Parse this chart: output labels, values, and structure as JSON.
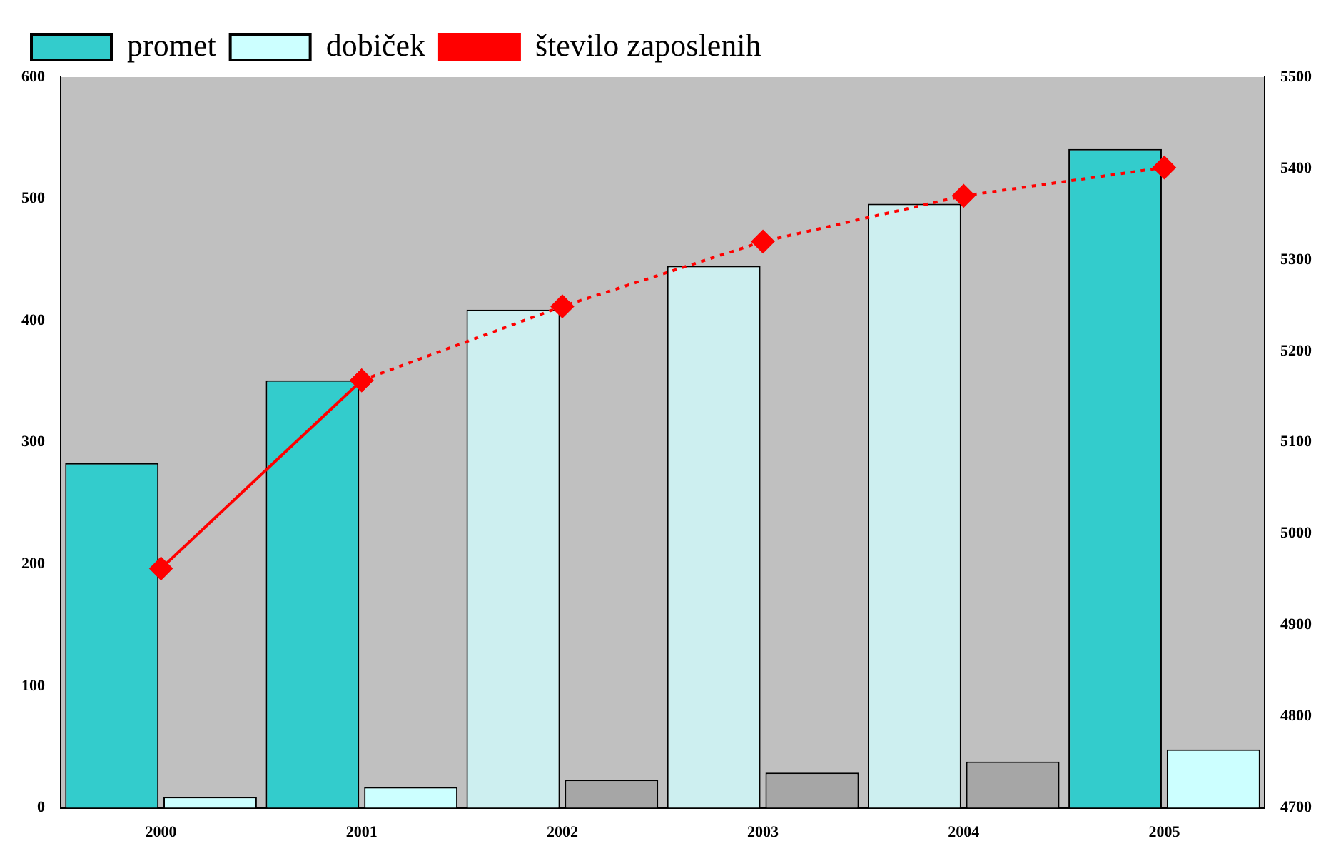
{
  "chart_data": {
    "type": "bar",
    "categories": [
      "2000",
      "2001",
      "2002",
      "2003",
      "2004",
      "2005"
    ],
    "series": [
      {
        "name": "promet",
        "color": "#33cccc",
        "colors": [
          "#33cccc",
          "#33cccc",
          "#cdeff0",
          "#cdeff0",
          "#cdeff0",
          "#33cccc"
        ],
        "values": [
          283,
          351,
          409,
          445,
          496,
          541
        ]
      },
      {
        "name": "dobiček",
        "color": "#ccffff",
        "colors": [
          "#ccffff",
          "#ccffff",
          "#a6a6a6",
          "#a6a6a6",
          "#a6a6a6",
          "#ccffff"
        ],
        "values": [
          9,
          17,
          23,
          29,
          38,
          48
        ]
      },
      {
        "name": "število zaposlenih",
        "type": "line",
        "axis": "y2",
        "color": "#ff0000",
        "line_style": "solid",
        "marker": "diamond",
        "values": [
          4962,
          5168,
          null,
          null,
          null,
          null
        ]
      },
      {
        "type": "line",
        "axis": "y2",
        "color": "#ff0000",
        "line_style": "dotted",
        "marker": "diamond",
        "values": [
          null,
          5168,
          5249,
          5320,
          5370,
          5401
        ]
      }
    ],
    "ylim": [
      0,
      600
    ],
    "yticks": [
      0,
      100,
      200,
      300,
      400,
      500,
      600
    ],
    "y2lim": [
      4700,
      5500
    ],
    "y2ticks": [
      4700,
      4800,
      4900,
      5000,
      5100,
      5200,
      5300,
      5400,
      5500
    ],
    "grid": false,
    "legend": "top left"
  }
}
